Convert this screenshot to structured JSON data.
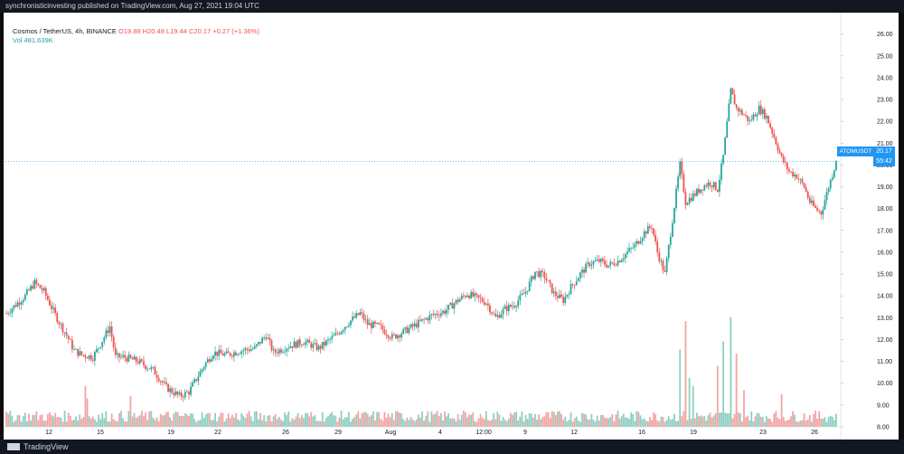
{
  "header": {
    "publish_line": "synchronisticinvesting published on TradingView.com, Aug 27, 2021 19:04 UTC"
  },
  "legend": {
    "symbol": "Cosmos / TetherUS, 4h, BINANCE",
    "ohlc": "O19.88 H20.48 L19.44 C20.17 +0.27 (+1.36%)",
    "volume": "Vol 481.639K"
  },
  "price_label": {
    "ticker": "ATOMUSDT",
    "price": "20.17",
    "countdown": "55:42"
  },
  "footer": {
    "brand": "TradingView"
  },
  "colors": {
    "up": "#26a69a",
    "down": "#ef5350",
    "up_vol": "#8fcfc2",
    "down_vol": "#f2a5a3",
    "last": "#2196f3"
  },
  "chart_data": {
    "type": "candlestick",
    "title": "",
    "yticks": [
      "26.00",
      "25.00",
      "24.00",
      "23.00",
      "22.00",
      "21.00",
      "20.00",
      "19.00",
      "18.00",
      "17.00",
      "16.00",
      "15.00",
      "14.00",
      "13.00",
      "12.00",
      "11.00",
      "10.00",
      "9.00",
      "8.00"
    ],
    "ylim": [
      7.5,
      26.4
    ],
    "xticks": [
      "12",
      "15",
      "19",
      "22",
      "26",
      "29",
      "Aug",
      "4",
      "12:00",
      "9",
      "12",
      "16",
      "19",
      "23",
      "26"
    ],
    "last_price": 20.17,
    "anchors": [
      {
        "i": 0,
        "p": 13.2
      },
      {
        "i": 5,
        "p": 13.6
      },
      {
        "i": 10,
        "p": 14.0
      },
      {
        "i": 15,
        "p": 14.6
      },
      {
        "i": 20,
        "p": 14.2
      },
      {
        "i": 25,
        "p": 13.3
      },
      {
        "i": 28,
        "p": 12.8
      },
      {
        "i": 32,
        "p": 12.2
      },
      {
        "i": 36,
        "p": 11.5
      },
      {
        "i": 40,
        "p": 11.3
      },
      {
        "i": 46,
        "p": 11.2
      },
      {
        "i": 50,
        "p": 11.8
      },
      {
        "i": 55,
        "p": 12.6
      },
      {
        "i": 58,
        "p": 11.2
      },
      {
        "i": 62,
        "p": 11.2
      },
      {
        "i": 70,
        "p": 11.0
      },
      {
        "i": 78,
        "p": 10.6
      },
      {
        "i": 85,
        "p": 9.8
      },
      {
        "i": 92,
        "p": 9.4
      },
      {
        "i": 97,
        "p": 9.6
      },
      {
        "i": 105,
        "p": 10.8
      },
      {
        "i": 110,
        "p": 11.4
      },
      {
        "i": 117,
        "p": 11.3
      },
      {
        "i": 125,
        "p": 11.5
      },
      {
        "i": 132,
        "p": 11.6
      },
      {
        "i": 138,
        "p": 12.2
      },
      {
        "i": 142,
        "p": 11.4
      },
      {
        "i": 150,
        "p": 11.7
      },
      {
        "i": 158,
        "p": 11.9
      },
      {
        "i": 166,
        "p": 11.6
      },
      {
        "i": 175,
        "p": 12.2
      },
      {
        "i": 182,
        "p": 12.8
      },
      {
        "i": 188,
        "p": 13.2
      },
      {
        "i": 192,
        "p": 12.7
      },
      {
        "i": 198,
        "p": 12.6
      },
      {
        "i": 205,
        "p": 12.1
      },
      {
        "i": 212,
        "p": 12.4
      },
      {
        "i": 220,
        "p": 12.8
      },
      {
        "i": 226,
        "p": 13.1
      },
      {
        "i": 233,
        "p": 13.3
      },
      {
        "i": 240,
        "p": 13.8
      },
      {
        "i": 245,
        "p": 14.1
      },
      {
        "i": 250,
        "p": 13.9
      },
      {
        "i": 255,
        "p": 13.7
      },
      {
        "i": 260,
        "p": 13.0
      },
      {
        "i": 265,
        "p": 13.4
      },
      {
        "i": 270,
        "p": 13.6
      },
      {
        "i": 276,
        "p": 14.2
      },
      {
        "i": 281,
        "p": 15.1
      },
      {
        "i": 286,
        "p": 14.9
      },
      {
        "i": 291,
        "p": 14.1
      },
      {
        "i": 296,
        "p": 13.8
      },
      {
        "i": 300,
        "p": 14.4
      },
      {
        "i": 305,
        "p": 15.0
      },
      {
        "i": 310,
        "p": 15.5
      },
      {
        "i": 315,
        "p": 15.6
      },
      {
        "i": 320,
        "p": 15.4
      },
      {
        "i": 325,
        "p": 15.6
      },
      {
        "i": 330,
        "p": 16.0
      },
      {
        "i": 334,
        "p": 16.3
      },
      {
        "i": 339,
        "p": 16.9
      },
      {
        "i": 343,
        "p": 17.2
      },
      {
        "i": 346,
        "p": 16.0
      },
      {
        "i": 350,
        "p": 15.0
      },
      {
        "i": 354,
        "p": 17.5
      },
      {
        "i": 358,
        "p": 20.0
      },
      {
        "i": 361,
        "p": 18.3
      },
      {
        "i": 365,
        "p": 18.6
      },
      {
        "i": 370,
        "p": 19.0
      },
      {
        "i": 374,
        "p": 19.2
      },
      {
        "i": 378,
        "p": 18.9
      },
      {
        "i": 381,
        "p": 20.4
      },
      {
        "i": 385,
        "p": 23.4
      },
      {
        "i": 388,
        "p": 22.6
      },
      {
        "i": 392,
        "p": 22.3
      },
      {
        "i": 395,
        "p": 22.0
      },
      {
        "i": 400,
        "p": 22.6
      },
      {
        "i": 404,
        "p": 22.2
      },
      {
        "i": 408,
        "p": 21.3
      },
      {
        "i": 412,
        "p": 20.3
      },
      {
        "i": 416,
        "p": 19.7
      },
      {
        "i": 420,
        "p": 19.5
      },
      {
        "i": 424,
        "p": 19.0
      },
      {
        "i": 427,
        "p": 18.3
      },
      {
        "i": 430,
        "p": 18.0
      },
      {
        "i": 433,
        "p": 17.8
      },
      {
        "i": 437,
        "p": 19.0
      },
      {
        "i": 441,
        "p": 20.17
      }
    ],
    "volume_spikes": [
      {
        "i": 42,
        "v": 1.0
      },
      {
        "i": 43,
        "v": 0.7
      },
      {
        "i": 66,
        "v": 0.75
      },
      {
        "i": 358,
        "v": 1.9
      },
      {
        "i": 361,
        "v": 2.6
      },
      {
        "i": 363,
        "v": 1.2
      },
      {
        "i": 365,
        "v": 1.0
      },
      {
        "i": 378,
        "v": 1.5
      },
      {
        "i": 381,
        "v": 2.1
      },
      {
        "i": 385,
        "v": 2.7
      },
      {
        "i": 388,
        "v": 1.8
      },
      {
        "i": 392,
        "v": 0.9
      },
      {
        "i": 412,
        "v": 0.8
      }
    ]
  }
}
